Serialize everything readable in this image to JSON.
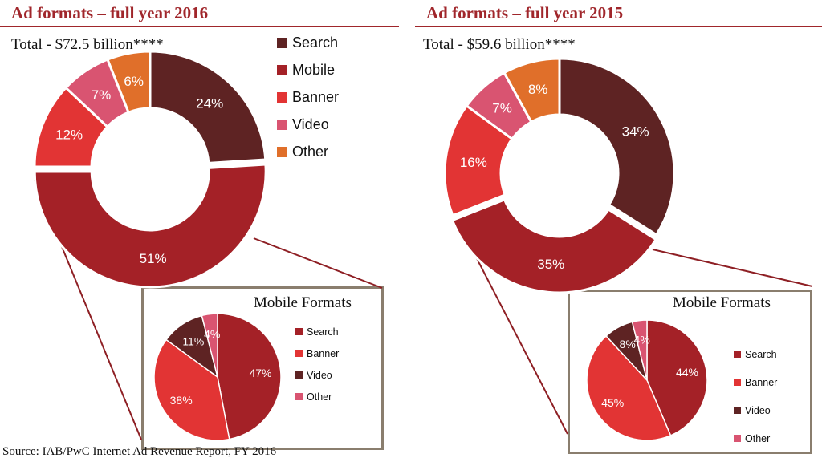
{
  "colors": {
    "title": "#a0262b",
    "box_border": "#8a7e6e",
    "Search_main": "#5e2323",
    "Mobile_main": "#a42127",
    "Banner_main": "#e23434",
    "Video_main": "#d95471",
    "Other_main": "#e06f2a",
    "Search_sub": "#a42127",
    "Banner_sub": "#e23434",
    "Video_sub": "#5e2323",
    "Other_sub": "#d95471"
  },
  "panels": [
    {
      "title": "Ad formats – full year 2016",
      "total": "Total - $72.5 billion****",
      "sub_title": "Mobile Formats"
    },
    {
      "title": "Ad formats – full year 2015",
      "total": "Total - $59.6 billion****",
      "sub_title": "Mobile Formats"
    }
  ],
  "source": "Source: IAB/PwC Internet Ad Revenue Report, FY 2016",
  "chart_data": [
    {
      "type": "pie",
      "title": "Ad formats – full year 2016",
      "subtitle": "Total - $72.5 billion****",
      "categories": [
        "Search",
        "Mobile",
        "Banner",
        "Video",
        "Other"
      ],
      "values": [
        24,
        51,
        12,
        7,
        6
      ],
      "labels": [
        "24%",
        "51%",
        "12%",
        "7%",
        "6%"
      ],
      "unit": "%",
      "donut": true,
      "legend": "right"
    },
    {
      "type": "pie",
      "title": "Mobile Formats",
      "categories": [
        "Search",
        "Banner",
        "Video",
        "Other"
      ],
      "values": [
        47,
        38,
        11,
        4
      ],
      "labels": [
        "47%",
        "38%",
        "11%",
        "4%"
      ],
      "unit": "%",
      "legend": "right"
    },
    {
      "type": "pie",
      "title": "Ad formats – full year 2015",
      "subtitle": "Total - $59.6 billion****",
      "categories": [
        "Search",
        "Mobile",
        "Banner",
        "Video",
        "Other"
      ],
      "values": [
        34,
        35,
        16,
        7,
        8
      ],
      "labels": [
        "34%",
        "35%",
        "16%",
        "7%",
        "8%"
      ],
      "unit": "%",
      "donut": true
    },
    {
      "type": "pie",
      "title": "Mobile Formats",
      "categories": [
        "Search",
        "Banner",
        "Video",
        "Other"
      ],
      "values": [
        44,
        45,
        8,
        4
      ],
      "labels": [
        "44%",
        "45%",
        "8%",
        "4%"
      ],
      "unit": "%",
      "legend": "right"
    }
  ]
}
